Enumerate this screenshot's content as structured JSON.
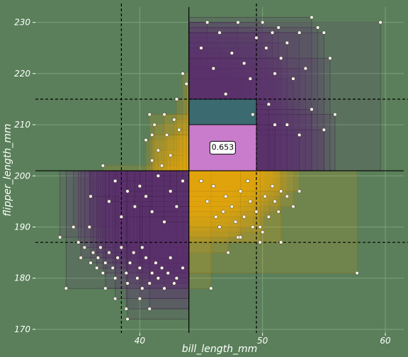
{
  "chart_data": {
    "type": "scatter",
    "title": "",
    "xlabel": "bill_length_mm",
    "ylabel": "flipper_length_mm",
    "xlim": [
      31.5,
      61.5
    ],
    "ylim": [
      169.3,
      233.0
    ],
    "x_ticks": [
      "40",
      "50",
      "60"
    ],
    "x_tick_values": [
      40,
      50,
      60
    ],
    "y_ticks": [
      "170",
      "180",
      "190",
      "200",
      "210",
      "220",
      "230"
    ],
    "y_tick_values": [
      170,
      180,
      190,
      200,
      210,
      220,
      230
    ],
    "grid": true,
    "center": {
      "x": 44.0,
      "y": 201.0
    },
    "v_quantile_lines": [
      38.5,
      49.5
    ],
    "h_quantile_lines": [
      187.0,
      215.0
    ],
    "center_label": "0.653",
    "quadrant_colors": {
      "upper_right": "#5e2f6f",
      "lower_left": "#5e2f6f",
      "lower_right": "#e6a80d",
      "upper_left": "#e6a80d"
    },
    "inner_box": {
      "x": [
        44.0,
        49.5
      ],
      "y": [
        201.0,
        215.0
      ]
    },
    "inner_box_colors": {
      "top": "#3b6a70",
      "bottom": "#c97ccb"
    },
    "points": [
      [
        33.5,
        188
      ],
      [
        34.6,
        190
      ],
      [
        35.0,
        187
      ],
      [
        35.2,
        184
      ],
      [
        35.5,
        186
      ],
      [
        35.9,
        190
      ],
      [
        36.0,
        183
      ],
      [
        36.2,
        185
      ],
      [
        36.5,
        182
      ],
      [
        36.6,
        184
      ],
      [
        36.8,
        186
      ],
      [
        37.0,
        181
      ],
      [
        37.2,
        183
      ],
      [
        37.5,
        185
      ],
      [
        37.8,
        182
      ],
      [
        38.0,
        180
      ],
      [
        38.2,
        184
      ],
      [
        38.5,
        186
      ],
      [
        38.9,
        181
      ],
      [
        39.0,
        179
      ],
      [
        39.2,
        183
      ],
      [
        39.5,
        185
      ],
      [
        39.8,
        180
      ],
      [
        40.0,
        182
      ],
      [
        40.2,
        186
      ],
      [
        40.5,
        184
      ],
      [
        40.8,
        179
      ],
      [
        41.0,
        181
      ],
      [
        41.3,
        183
      ],
      [
        41.5,
        180
      ],
      [
        41.8,
        182
      ],
      [
        42.0,
        178
      ],
      [
        42.3,
        181
      ],
      [
        42.5,
        184
      ],
      [
        42.8,
        179
      ],
      [
        43.0,
        180
      ],
      [
        43.5,
        182
      ],
      [
        34.0,
        178
      ],
      [
        37.2,
        178
      ],
      [
        38.0,
        176
      ],
      [
        38.9,
        174
      ],
      [
        39.0,
        172
      ],
      [
        40.0,
        176
      ],
      [
        40.2,
        178
      ],
      [
        40.8,
        174
      ],
      [
        36.0,
        196
      ],
      [
        37.5,
        195
      ],
      [
        38.0,
        199
      ],
      [
        38.5,
        192
      ],
      [
        39.0,
        197
      ],
      [
        39.6,
        194
      ],
      [
        40.0,
        198
      ],
      [
        40.5,
        196
      ],
      [
        41.0,
        193
      ],
      [
        41.5,
        200
      ],
      [
        42.0,
        191
      ],
      [
        42.5,
        197
      ],
      [
        43.0,
        194
      ],
      [
        43.5,
        199
      ],
      [
        37.0,
        202
      ],
      [
        40.5,
        207
      ],
      [
        41.0,
        203
      ],
      [
        41.2,
        210
      ],
      [
        41.5,
        205
      ],
      [
        41.8,
        202
      ],
      [
        42.0,
        212
      ],
      [
        42.2,
        208
      ],
      [
        42.5,
        204
      ],
      [
        42.8,
        211
      ],
      [
        43.0,
        215
      ],
      [
        43.2,
        209
      ],
      [
        43.5,
        220
      ],
      [
        43.8,
        218
      ],
      [
        40.8,
        212
      ],
      [
        41.0,
        208
      ],
      [
        45.0,
        199
      ],
      [
        45.5,
        195
      ],
      [
        46.0,
        198
      ],
      [
        46.2,
        192
      ],
      [
        46.5,
        190
      ],
      [
        46.8,
        193
      ],
      [
        47.0,
        196
      ],
      [
        47.2,
        185
      ],
      [
        47.5,
        194
      ],
      [
        47.8,
        191
      ],
      [
        48.0,
        188
      ],
      [
        48.2,
        197
      ],
      [
        48.5,
        192
      ],
      [
        48.8,
        199
      ],
      [
        49.0,
        195
      ],
      [
        49.2,
        190
      ],
      [
        49.5,
        193
      ],
      [
        49.8,
        187
      ],
      [
        50.0,
        189
      ],
      [
        50.2,
        196
      ],
      [
        50.5,
        192
      ],
      [
        50.8,
        198
      ],
      [
        51.0,
        195
      ],
      [
        51.3,
        193
      ],
      [
        51.5,
        197
      ],
      [
        52.0,
        196
      ],
      [
        52.5,
        194
      ],
      [
        53.0,
        197
      ],
      [
        45.8,
        178
      ],
      [
        48.2,
        188
      ],
      [
        49.8,
        190
      ],
      [
        51.5,
        187
      ],
      [
        57.7,
        181
      ],
      [
        45.0,
        225
      ],
      [
        45.5,
        230
      ],
      [
        46.0,
        221
      ],
      [
        46.5,
        228
      ],
      [
        47.0,
        216
      ],
      [
        47.5,
        224
      ],
      [
        48.0,
        230
      ],
      [
        48.5,
        222
      ],
      [
        49.0,
        219
      ],
      [
        49.5,
        227
      ],
      [
        50.0,
        230
      ],
      [
        50.3,
        225
      ],
      [
        50.8,
        228
      ],
      [
        51.0,
        220
      ],
      [
        51.3,
        229
      ],
      [
        51.5,
        223
      ],
      [
        52.0,
        226
      ],
      [
        52.5,
        219
      ],
      [
        53.0,
        228
      ],
      [
        53.5,
        221
      ],
      [
        54.0,
        231
      ],
      [
        54.5,
        229
      ],
      [
        55.0,
        228
      ],
      [
        55.5,
        223
      ],
      [
        59.6,
        230
      ],
      [
        52.0,
        210
      ],
      [
        53.0,
        208
      ],
      [
        54.0,
        213
      ],
      [
        55.0,
        209
      ],
      [
        55.9,
        212
      ],
      [
        50.5,
        214
      ],
      [
        51.0,
        210
      ],
      [
        49.2,
        212
      ]
    ]
  }
}
